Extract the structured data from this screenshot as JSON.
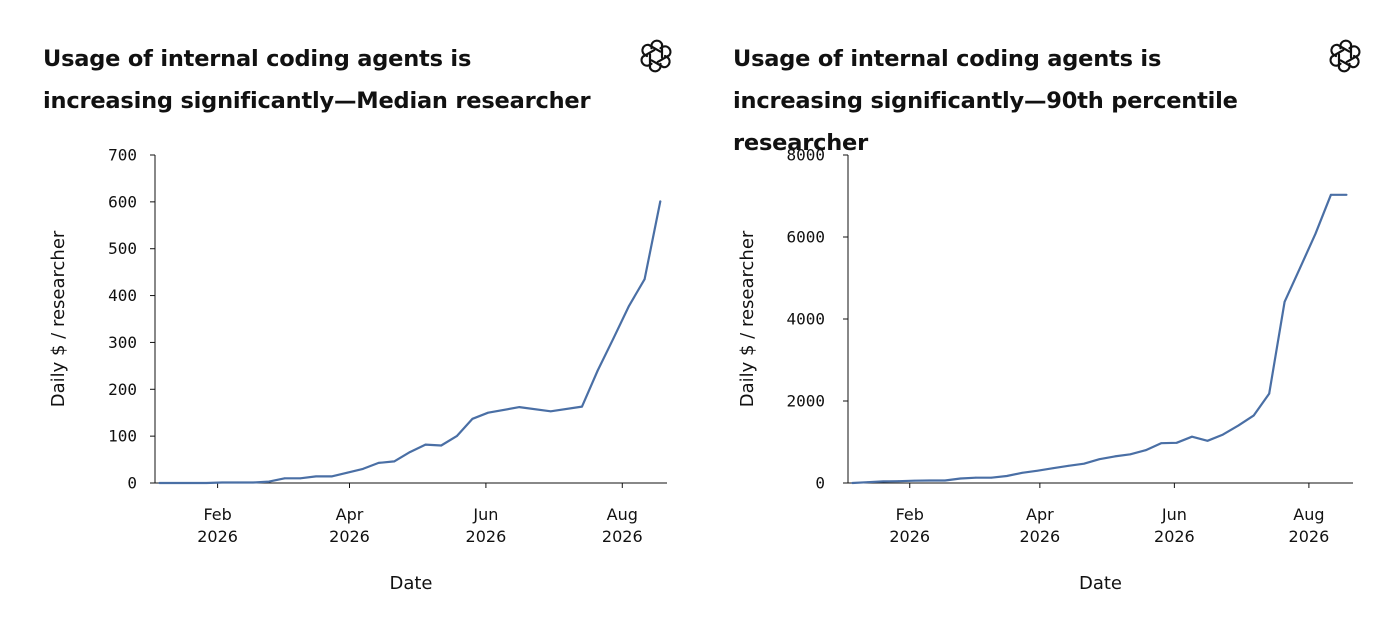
{
  "logo_icon": "openai-knot-icon",
  "line_color": "#4a6fa5",
  "chart_data": [
    {
      "type": "line",
      "title": "Usage of internal coding agents is increasing significantly—Median researcher",
      "xlabel": "Date",
      "ylabel": "Daily $ / researcher",
      "ylim": [
        0,
        700
      ],
      "xlim": [
        "2026-01-04",
        "2026-08-21"
      ],
      "grid": false,
      "yticks": [
        0,
        100,
        200,
        300,
        400,
        500,
        600,
        700
      ],
      "ytick_labels": [
        "0",
        "100",
        "200",
        "300",
        "400",
        "500",
        "600",
        "700"
      ],
      "xticks": [
        "2026-02-01",
        "2026-04-01",
        "2026-06-01",
        "2026-08-01"
      ],
      "xtick_labels": [
        [
          "Feb",
          "2026"
        ],
        [
          "Apr",
          "2026"
        ],
        [
          "Jun",
          "2026"
        ],
        [
          "Aug",
          "2026"
        ]
      ],
      "series": [
        {
          "x": [
            "2026-01-06",
            "2026-01-13",
            "2026-01-20",
            "2026-01-27",
            "2026-02-03",
            "2026-02-10",
            "2026-02-17",
            "2026-02-24",
            "2026-03-03",
            "2026-03-10",
            "2026-03-17",
            "2026-03-24",
            "2026-03-31",
            "2026-04-07",
            "2026-04-14",
            "2026-04-21",
            "2026-04-28",
            "2026-05-05",
            "2026-05-12",
            "2026-05-19",
            "2026-05-26",
            "2026-06-02",
            "2026-06-16",
            "2026-06-30",
            "2026-07-14",
            "2026-07-21",
            "2026-07-28",
            "2026-08-04",
            "2026-08-11",
            "2026-08-18"
          ],
          "y": [
            0,
            0,
            0,
            0,
            1,
            1,
            1,
            3,
            10,
            10,
            14,
            14,
            22,
            30,
            43,
            46,
            66,
            82,
            80,
            100,
            137,
            150,
            162,
            153,
            163,
            240,
            308,
            378,
            435,
            601
          ]
        }
      ]
    },
    {
      "type": "line",
      "title": "Usage of internal coding agents is increasing significantly—90th percentile researcher",
      "xlabel": "Date",
      "ylabel": "Daily $ / researcher",
      "ylim": [
        0,
        8000
      ],
      "xlim": [
        "2026-01-04",
        "2026-08-21"
      ],
      "grid": false,
      "yticks": [
        0,
        2000,
        4000,
        6000,
        8000
      ],
      "ytick_labels": [
        "0",
        "2000",
        "4000",
        "6000",
        "8000"
      ],
      "xticks": [
        "2026-02-01",
        "2026-04-01",
        "2026-06-01",
        "2026-08-01"
      ],
      "xtick_labels": [
        [
          "Feb",
          "2026"
        ],
        [
          "Apr",
          "2026"
        ],
        [
          "Jun",
          "2026"
        ],
        [
          "Aug",
          "2026"
        ]
      ],
      "series": [
        {
          "x": [
            "2026-01-06",
            "2026-01-13",
            "2026-01-20",
            "2026-01-27",
            "2026-02-03",
            "2026-02-10",
            "2026-02-17",
            "2026-02-24",
            "2026-03-03",
            "2026-03-10",
            "2026-03-17",
            "2026-03-24",
            "2026-03-31",
            "2026-04-07",
            "2026-04-14",
            "2026-04-21",
            "2026-04-28",
            "2026-05-05",
            "2026-05-12",
            "2026-05-19",
            "2026-05-26",
            "2026-06-02",
            "2026-06-09",
            "2026-06-16",
            "2026-06-23",
            "2026-06-30",
            "2026-07-07",
            "2026-07-14",
            "2026-07-21",
            "2026-07-28",
            "2026-08-04",
            "2026-08-11",
            "2026-08-18"
          ],
          "y": [
            0,
            20,
            40,
            45,
            55,
            60,
            60,
            110,
            130,
            130,
            170,
            250,
            300,
            360,
            420,
            470,
            580,
            650,
            700,
            800,
            970,
            980,
            1130,
            1030,
            1180,
            1400,
            1650,
            2180,
            4420,
            5250,
            6080,
            7030,
            7030
          ]
        }
      ]
    }
  ]
}
